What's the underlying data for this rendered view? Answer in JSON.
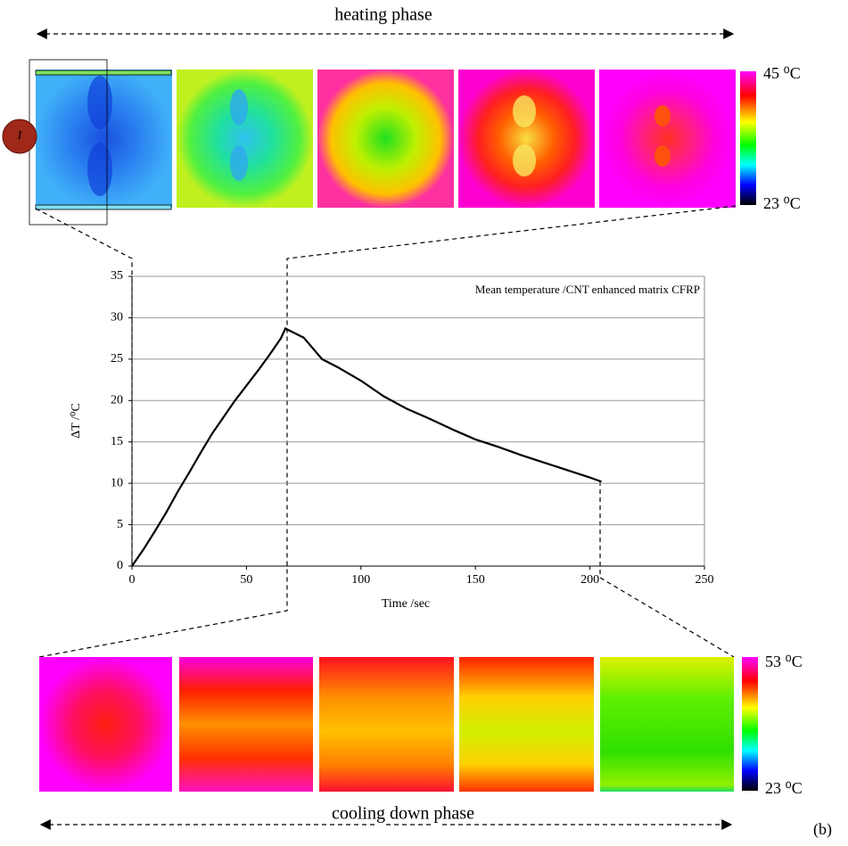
{
  "figure": {
    "heating_label": "heating phase",
    "heating_scale": {
      "max": "45 ⁰C",
      "min": "23 ⁰C"
    },
    "cooling_label": "cooling down phase",
    "cooling_scale": {
      "max": "53 ⁰C",
      "min": "23 ⁰C"
    },
    "current_label": "I",
    "panel_label": "(b)"
  },
  "chart_data": {
    "type": "line",
    "annotation": "Mean temperature /CNT enhanced matrix CFRP",
    "x_label": "Time /sec",
    "y_label": "ΔT /⁰C",
    "x": [
      0,
      5,
      10,
      15,
      20,
      25,
      30,
      35,
      40,
      45,
      50,
      55,
      60,
      65,
      67,
      75,
      83,
      90,
      100,
      110,
      120,
      130,
      140,
      150,
      160,
      170,
      180,
      190,
      200,
      205
    ],
    "values": [
      0,
      2,
      4.2,
      6.5,
      9,
      11.3,
      13.7,
      16,
      18,
      20,
      21.8,
      23.6,
      25.5,
      27.5,
      28.7,
      27.6,
      25,
      24,
      22.4,
      20.5,
      19,
      17.8,
      16.5,
      15.3,
      14.4,
      13.4,
      12.5,
      11.6,
      10.7,
      10.2
    ],
    "color": "#000000",
    "xlim": [
      0,
      250
    ],
    "ylim": [
      0,
      35
    ],
    "xticks": [
      0,
      50,
      100,
      150,
      200,
      250
    ],
    "yticks": [
      0,
      5,
      10,
      15,
      20,
      25,
      30,
      35
    ],
    "grid": true
  }
}
